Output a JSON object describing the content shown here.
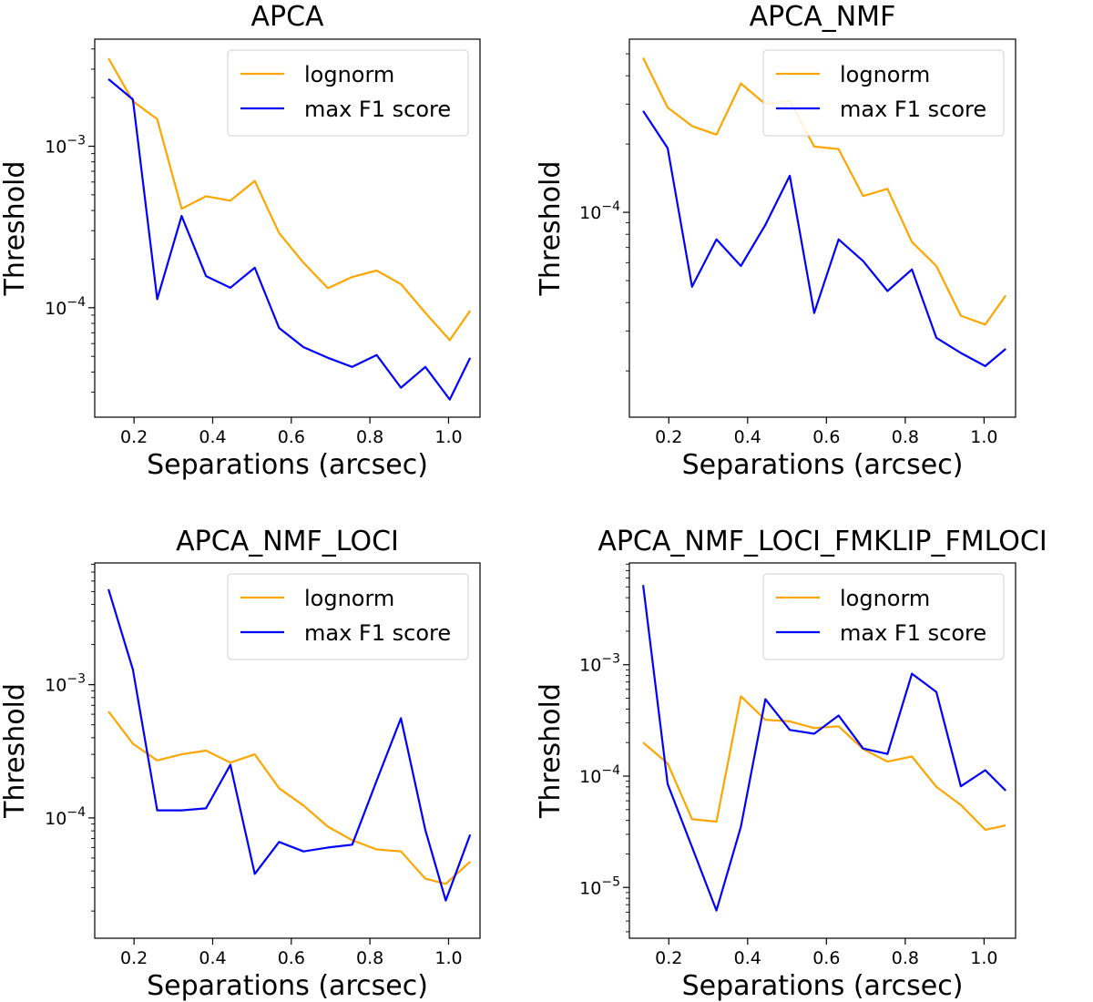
{
  "chart_data": [
    {
      "type": "line",
      "title": "APCA",
      "xlabel": "Separations (arcsec)",
      "ylabel": "Threshold",
      "yscale": "log",
      "xlim": [
        0.1,
        1.08
      ],
      "ylim": [
        2.1e-05,
        0.0046
      ],
      "xticks": [
        0.2,
        0.4,
        0.6,
        0.8,
        1.0
      ],
      "xtick_labels": [
        "0.2",
        "0.4",
        "0.6",
        "0.8",
        "1.0"
      ],
      "yticks": [
        0.001,
        0.0001
      ],
      "ytick_labels": [
        {
          "base": "10",
          "exp": "−3"
        },
        {
          "base": "10",
          "exp": "−4"
        }
      ],
      "legend": "top-right",
      "x": [
        0.135,
        0.197,
        0.259,
        0.321,
        0.383,
        0.445,
        0.507,
        0.569,
        0.631,
        0.693,
        0.755,
        0.817,
        0.879,
        0.941,
        1.003,
        1.055
      ],
      "series": [
        {
          "name": "lognorm",
          "color": "#FFA500",
          "values": [
            0.0035,
            0.0019,
            0.00147,
            0.00041,
            0.00049,
            0.00046,
            0.00061,
            0.00029,
            0.00019,
            0.000132,
            0.000155,
            0.00017,
            0.00014,
            9.3e-05,
            6.3e-05,
            9.6e-05
          ]
        },
        {
          "name": "max F1 score",
          "color": "#0000FF",
          "values": [
            0.0026,
            0.00195,
            0.000113,
            0.00037,
            0.000157,
            0.000133,
            0.000177,
            7.5e-05,
            5.7e-05,
            4.9e-05,
            4.3e-05,
            5.1e-05,
            3.2e-05,
            4.3e-05,
            2.7e-05,
            4.9e-05
          ]
        }
      ]
    },
    {
      "type": "line",
      "title": "APCA_NMF",
      "xlabel": "Separations (arcsec)",
      "ylabel": "Threshold",
      "yscale": "log",
      "xlim": [
        0.1,
        1.08
      ],
      "ylim": [
        1.25e-05,
        0.00058
      ],
      "xticks": [
        0.2,
        0.4,
        0.6,
        0.8,
        1.0
      ],
      "xtick_labels": [
        "0.2",
        "0.4",
        "0.6",
        "0.8",
        "1.0"
      ],
      "yticks": [
        0.0001
      ],
      "ytick_labels": [
        {
          "base": "10",
          "exp": "−4"
        }
      ],
      "legend": "top-right",
      "x": [
        0.135,
        0.197,
        0.259,
        0.321,
        0.383,
        0.445,
        0.507,
        0.569,
        0.631,
        0.693,
        0.755,
        0.817,
        0.879,
        0.941,
        1.003,
        1.055
      ],
      "series": [
        {
          "name": "lognorm",
          "color": "#FFA500",
          "values": [
            0.00048,
            0.00029,
            0.00024,
            0.00022,
            0.00037,
            0.0003,
            0.00031,
            0.000195,
            0.00019,
            0.000118,
            0.000127,
            7.4e-05,
            5.8e-05,
            3.5e-05,
            3.2e-05,
            4.3e-05
          ]
        },
        {
          "name": "max F1 score",
          "color": "#0000FF",
          "values": [
            0.00028,
            0.000192,
            4.7e-05,
            7.6e-05,
            5.8e-05,
            8.8e-05,
            0.000145,
            3.6e-05,
            7.6e-05,
            6.1e-05,
            4.5e-05,
            5.6e-05,
            2.8e-05,
            2.4e-05,
            2.1e-05,
            2.5e-05
          ]
        }
      ]
    },
    {
      "type": "line",
      "title": "APCA_NMF_LOCI",
      "xlabel": "Separations (arcsec)",
      "ylabel": "Threshold",
      "yscale": "log",
      "xlim": [
        0.1,
        1.08
      ],
      "ylim": [
        1.25e-05,
        0.0082
      ],
      "xticks": [
        0.2,
        0.4,
        0.6,
        0.8,
        1.0
      ],
      "xtick_labels": [
        "0.2",
        "0.4",
        "0.6",
        "0.8",
        "1.0"
      ],
      "yticks": [
        0.001,
        0.0001
      ],
      "ytick_labels": [
        {
          "base": "10",
          "exp": "−3"
        },
        {
          "base": "10",
          "exp": "−4"
        }
      ],
      "legend": "top-right",
      "x": [
        0.135,
        0.197,
        0.259,
        0.321,
        0.383,
        0.445,
        0.507,
        0.569,
        0.631,
        0.693,
        0.755,
        0.817,
        0.879,
        0.941,
        0.993,
        1.055
      ],
      "series": [
        {
          "name": "lognorm",
          "color": "#FFA500",
          "values": [
            0.00063,
            0.00036,
            0.00027,
            0.0003,
            0.00032,
            0.00026,
            0.0003,
            0.000167,
            0.000124,
            8.6e-05,
            6.8e-05,
            5.8e-05,
            5.6e-05,
            3.5e-05,
            3.2e-05,
            4.7e-05
          ]
        },
        {
          "name": "max F1 score",
          "color": "#0000FF",
          "values": [
            0.0052,
            0.0013,
            0.000114,
            0.000114,
            0.000118,
            0.00025,
            3.8e-05,
            6.6e-05,
            5.6e-05,
            6e-05,
            6.3e-05,
            0.00019,
            0.00056,
            8.1e-05,
            2.4e-05,
            7.5e-05
          ]
        }
      ]
    },
    {
      "type": "line",
      "title": "APCA_NMF_LOCI_FMKLIP_FMLOCI",
      "xlabel": "Separations (arcsec)",
      "ylabel": "Threshold",
      "yscale": "log",
      "xlim": [
        0.1,
        1.08
      ],
      "ylim": [
        3.5e-06,
        0.0082
      ],
      "xticks": [
        0.2,
        0.4,
        0.6,
        0.8,
        1.0
      ],
      "xtick_labels": [
        "0.2",
        "0.4",
        "0.6",
        "0.8",
        "1.0"
      ],
      "yticks": [
        0.001,
        0.0001,
        1e-05
      ],
      "ytick_labels": [
        {
          "base": "10",
          "exp": "−3"
        },
        {
          "base": "10",
          "exp": "−4"
        },
        {
          "base": "10",
          "exp": "−5"
        }
      ],
      "legend": "top-right",
      "x": [
        0.135,
        0.197,
        0.259,
        0.321,
        0.383,
        0.445,
        0.507,
        0.569,
        0.631,
        0.693,
        0.755,
        0.817,
        0.879,
        0.941,
        1.003,
        1.055
      ],
      "series": [
        {
          "name": "lognorm",
          "color": "#FFA500",
          "values": [
            0.0002,
            0.00013,
            4.1e-05,
            3.9e-05,
            0.00052,
            0.00032,
            0.00031,
            0.00027,
            0.00028,
            0.000175,
            0.000135,
            0.00015,
            8e-05,
            5.5e-05,
            3.3e-05,
            3.6e-05
          ]
        },
        {
          "name": "max F1 score",
          "color": "#0000FF",
          "values": [
            0.0052,
            8.5e-05,
            2.3e-05,
            6.2e-06,
            3.5e-05,
            0.00049,
            0.00026,
            0.00024,
            0.00035,
            0.000177,
            0.000158,
            0.00083,
            0.00057,
            8.1e-05,
            0.000113,
            7.4e-05
          ]
        }
      ]
    }
  ]
}
